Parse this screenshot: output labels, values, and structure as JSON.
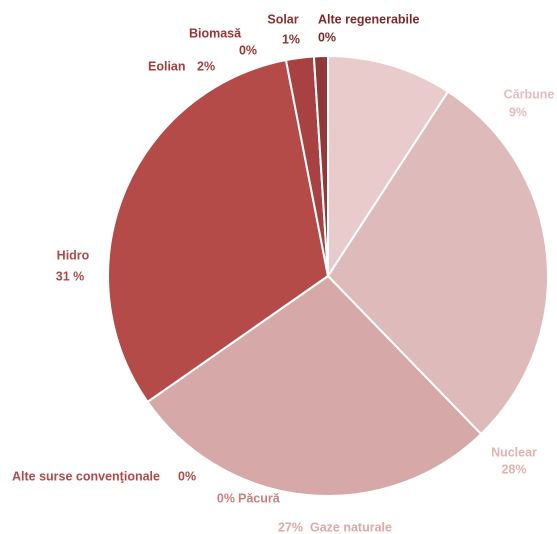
{
  "chart_data": {
    "type": "pie",
    "categories": [
      "Cărbune",
      "Nuclear",
      "Gaze naturale",
      "Păcură",
      "Alte surse convenţionale",
      "Hidro",
      "Eolian",
      "Biomasă",
      "Solar",
      "Alte regenerabile"
    ],
    "values": [
      9,
      28,
      27,
      0,
      0,
      31,
      2,
      0,
      1,
      0
    ],
    "value_labels": [
      "9%",
      "28%",
      "27%",
      "0%",
      "0%",
      "31 %",
      "2%",
      "0%",
      "1%",
      "0%"
    ],
    "colors": [
      "#e9cbcb",
      "#dfbaba",
      "#d6a8a8",
      "#cc9090",
      "#c27373",
      "#b44b49",
      "#a84242",
      "#9d3b3b",
      "#913838",
      "#842f2f"
    ]
  }
}
